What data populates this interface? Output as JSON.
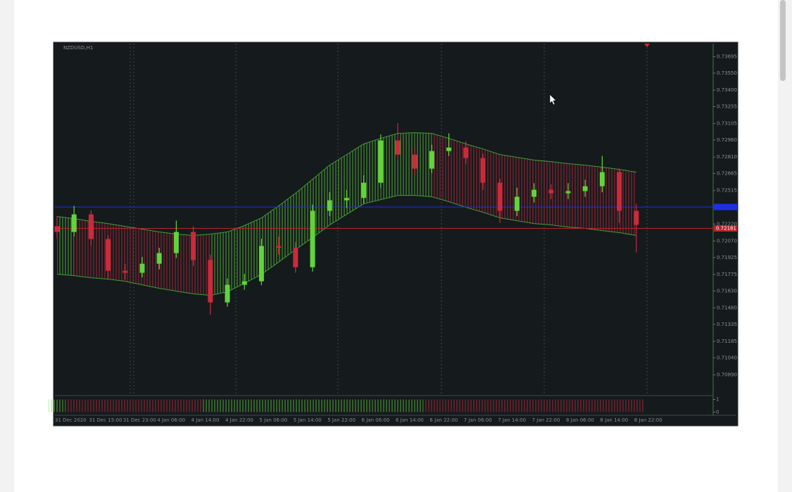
{
  "chart_data": {
    "type": "candlestick",
    "title": "NZDUSD,H1",
    "categories": [
      "31 Dec 2020",
      null,
      "31 Dec 15:00",
      null,
      "31 Dec 23:00",
      null,
      "4 Jan 06:00",
      null,
      "4 Jan 14:00",
      null,
      "4 Jan 22:00",
      null,
      "5 Jan 06:00",
      null,
      "5 Jan 14:00",
      null,
      "5 Jan 22:00",
      null,
      "6 Jan 06:00",
      null,
      "6 Jan 14:00",
      null,
      "6 Jan 22:00",
      null,
      "7 Jan 06:00",
      null,
      "7 Jan 14:00",
      null,
      "7 Jan 22:00",
      null,
      "8 Jan 06:00",
      null,
      "8 Jan 14:00",
      null,
      "8 Jan 22:00"
    ],
    "open": [
      0.722,
      0.7215,
      0.72305,
      0.72088,
      0.71808,
      0.7179,
      0.7187,
      0.71964,
      0.7215,
      0.71902,
      0.71529,
      0.71684,
      0.71715,
      0.72026,
      0.7201,
      0.71839,
      0.72336,
      0.72429,
      0.7245,
      0.72584,
      0.72957,
      0.72832,
      0.72708,
      0.72863,
      0.72894,
      0.72801,
      0.72584,
      0.72336,
      0.7246,
      0.72522,
      0.72491,
      0.7251,
      0.72553,
      0.72677,
      0.72336
    ],
    "high": [
      0.7229,
      0.7238,
      0.7234,
      0.7212,
      0.7187,
      0.7193,
      0.7201,
      0.7225,
      0.722,
      0.7195,
      0.7174,
      0.7178,
      0.7209,
      0.7211,
      0.7206,
      0.7239,
      0.725,
      0.7252,
      0.7265,
      0.7301,
      0.7311,
      0.729,
      0.7292,
      0.7302,
      0.7295,
      0.7284,
      0.7262,
      0.7254,
      0.7258,
      0.7257,
      0.7258,
      0.7261,
      0.7282,
      0.7271,
      0.724
    ],
    "low": [
      0.7209,
      0.7211,
      0.7203,
      0.7174,
      0.7173,
      0.7175,
      0.7182,
      0.7192,
      0.7185,
      0.7142,
      0.7149,
      0.7164,
      0.7168,
      0.7195,
      0.7179,
      0.718,
      0.7229,
      0.7236,
      0.724,
      0.7254,
      0.7278,
      0.7265,
      0.7267,
      0.7282,
      0.7275,
      0.7252,
      0.7223,
      0.7229,
      0.7241,
      0.7244,
      0.7244,
      0.7246,
      0.725,
      0.7223,
      0.7197
    ],
    "close": [
      0.7215,
      0.72305,
      0.72088,
      0.71808,
      0.7179,
      0.7187,
      0.71964,
      0.7215,
      0.71902,
      0.71529,
      0.71684,
      0.71715,
      0.72026,
      0.7201,
      0.71839,
      0.72336,
      0.72429,
      0.7245,
      0.72584,
      0.72957,
      0.72832,
      0.72708,
      0.72863,
      0.72894,
      0.72801,
      0.72584,
      0.72336,
      0.7246,
      0.72522,
      0.72491,
      0.7251,
      0.72553,
      0.72677,
      0.72336,
      0.72212
    ],
    "trend": [
      "up",
      "down",
      "down",
      "down",
      "down",
      "down",
      "down",
      "down",
      "down",
      "up",
      "up",
      "up",
      "up",
      "up",
      "up",
      "up",
      "up",
      "up",
      "up",
      "up",
      "up",
      "up",
      "down",
      "down",
      "down",
      "down",
      "down",
      "down",
      "down",
      "down",
      "down",
      "down",
      "down",
      "down",
      "down"
    ],
    "colors": {
      "up": "#62d43a",
      "down": "#cc2a3c"
    },
    "band": {
      "upper": [
        0.72286,
        0.72268,
        0.72243,
        0.72224,
        0.72199,
        0.72175,
        0.7215,
        0.72131,
        0.72119,
        0.72131,
        0.7215,
        0.72206,
        0.72274,
        0.72379,
        0.72491,
        0.72615,
        0.72739,
        0.72832,
        0.72926,
        0.72975,
        0.73019,
        0.73025,
        0.73019,
        0.72975,
        0.72926,
        0.72882,
        0.72832,
        0.72808,
        0.72783,
        0.7277,
        0.72752,
        0.72739,
        0.72721,
        0.72702,
        0.72677
      ],
      "lower": [
        0.71777,
        0.71765,
        0.71746,
        0.71734,
        0.71715,
        0.71684,
        0.71653,
        0.71628,
        0.71604,
        0.71591,
        0.71622,
        0.71697,
        0.71777,
        0.71883,
        0.71995,
        0.721,
        0.72212,
        0.72305,
        0.72398,
        0.72435,
        0.72472,
        0.72472,
        0.7246,
        0.72417,
        0.72367,
        0.72324,
        0.72274,
        0.72249,
        0.72224,
        0.72212,
        0.72193,
        0.72181,
        0.72162,
        0.72144,
        0.72119
      ],
      "color": "#3f9e35"
    },
    "ylim": [
      0.7072,
      0.7381
    ],
    "yticks": [
      0.73695,
      {
        "value": 0.7355,
        "label": "0.73550"
      },
      {
        "value": 0.734,
        "label": "0.73400"
      },
      0.73255,
      0.73105,
      {
        "value": 0.7296,
        "label": "0.72960"
      },
      {
        "value": 0.7281,
        "label": "0.72810"
      },
      0.72665,
      0.72515,
      {
        "value": 0.7222,
        "label": "0.72220"
      },
      {
        "value": 0.7207,
        "label": "0.72070"
      },
      0.71925,
      0.71775,
      {
        "value": 0.7163,
        "label": "0.71630"
      },
      {
        "value": 0.7148,
        "label": "0.71480"
      },
      0.71335,
      0.71185,
      {
        "value": 0.7104,
        "label": "0.71040"
      },
      {
        "value": 0.7089,
        "label": "0.70890"
      }
    ],
    "price_lines": [
      {
        "value": 0.7237,
        "color": "#1d2fe0"
      },
      {
        "value": 0.72181,
        "label": "0.72181",
        "color": "#b3262c"
      }
    ],
    "indicator": {
      "values": [
        1,
        1,
        1,
        1,
        1,
        1,
        1,
        1,
        1,
        1,
        1,
        1,
        1,
        1,
        1,
        1,
        1,
        1,
        1,
        1,
        1,
        1,
        1,
        1,
        1,
        1,
        1,
        1,
        1,
        1,
        1,
        1,
        1,
        1,
        1
      ],
      "ylim": [
        -0.25,
        1.25
      ],
      "yticks": [
        0,
        1
      ]
    }
  }
}
